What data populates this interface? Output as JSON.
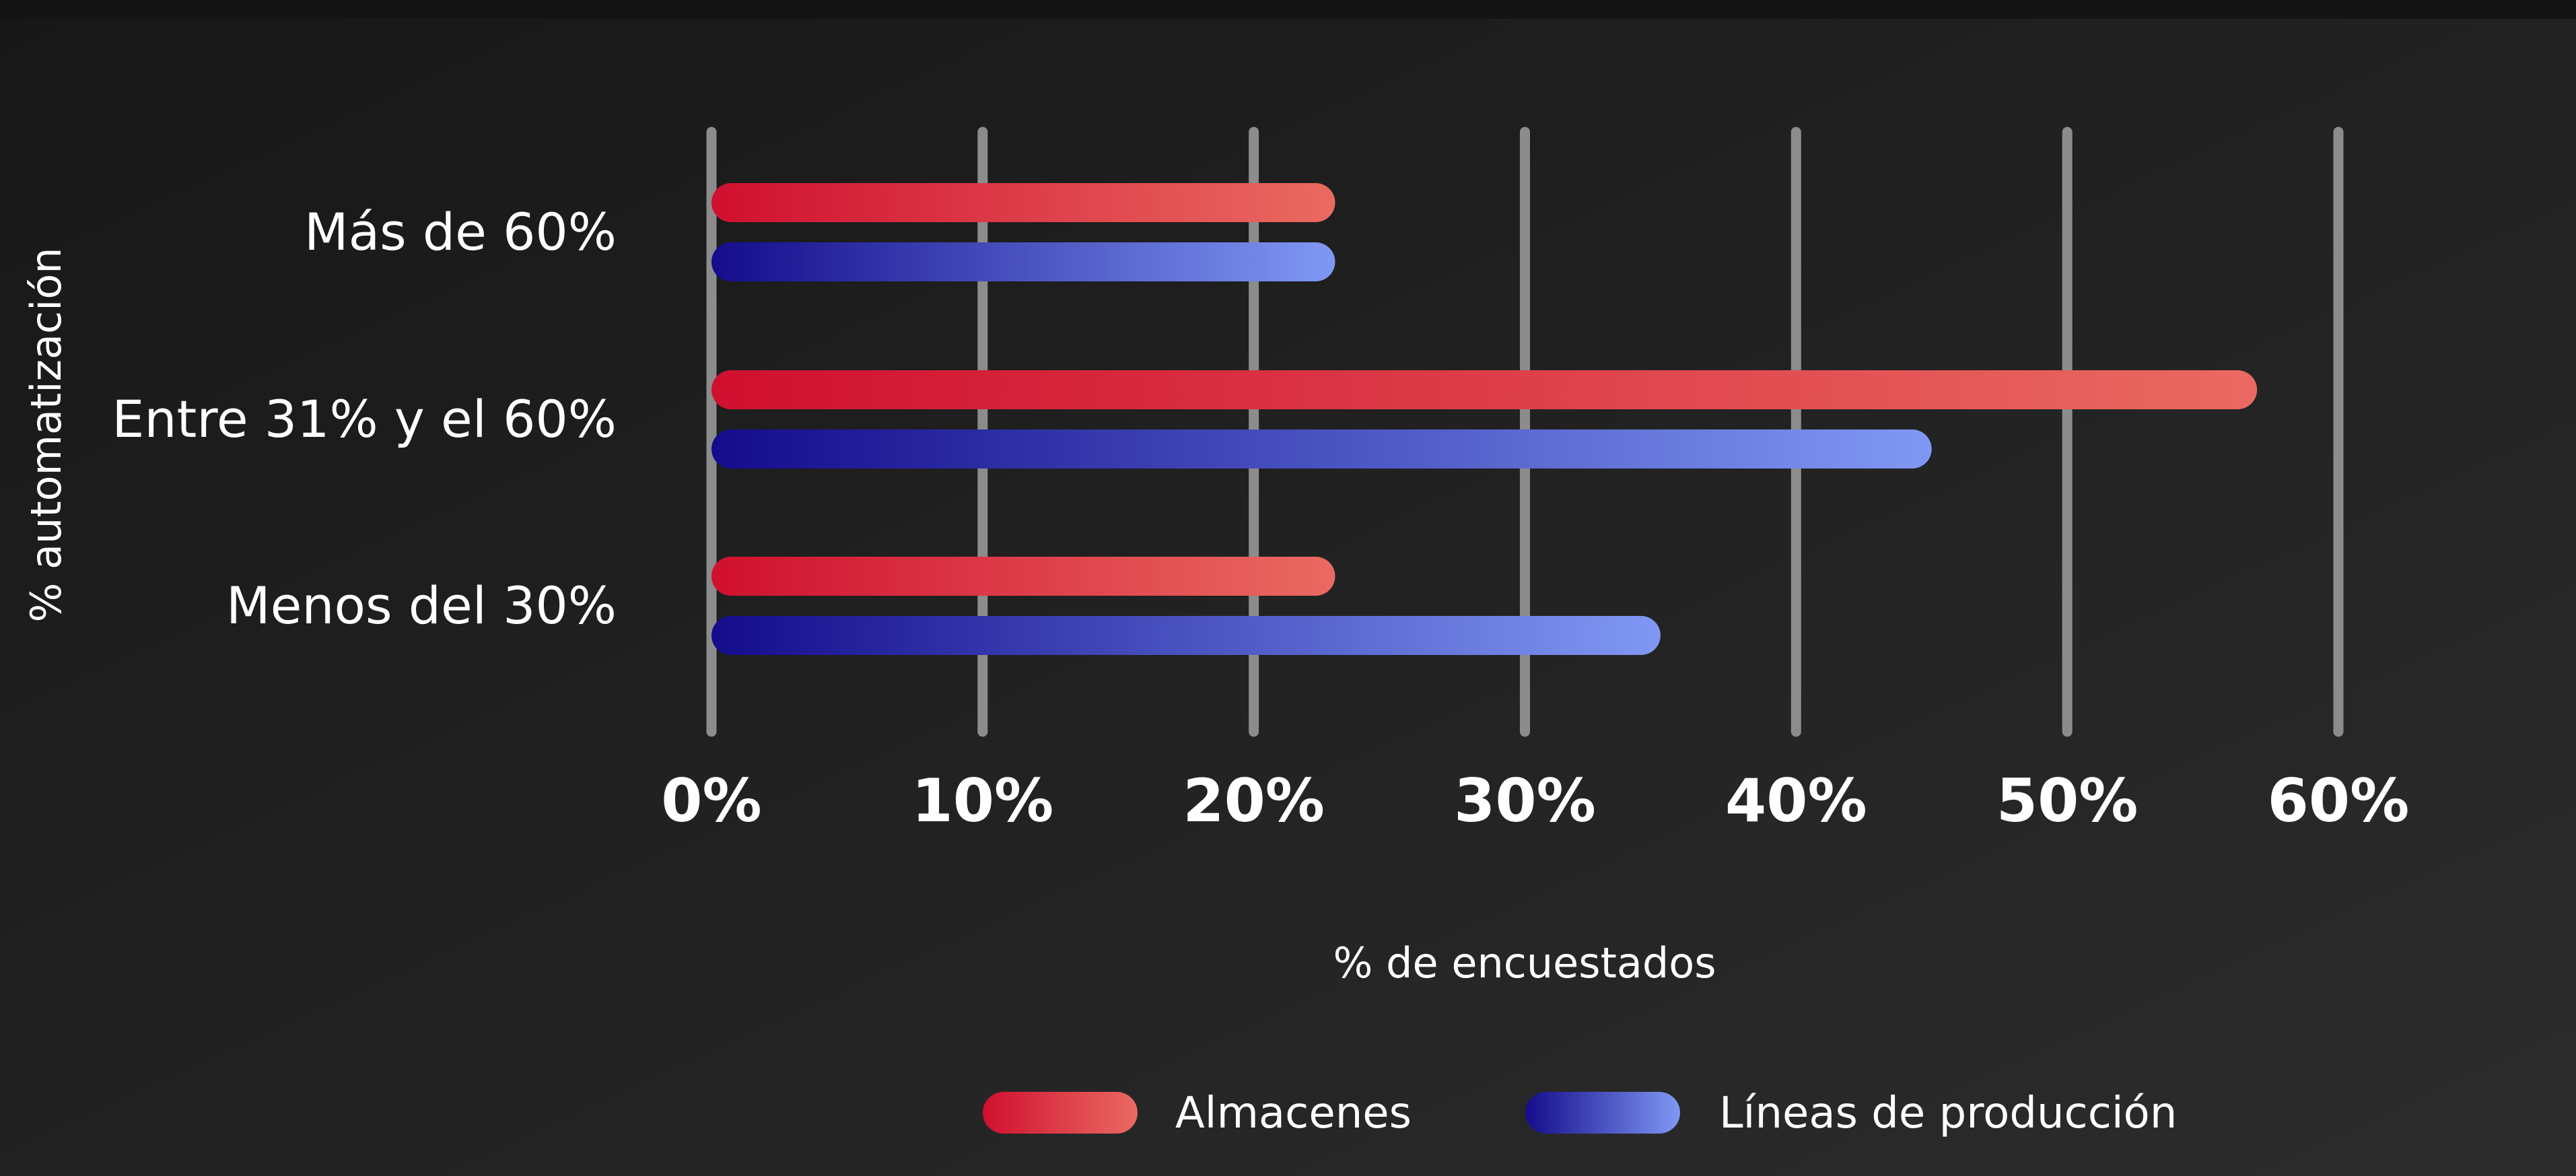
{
  "colors": {
    "background_start": "#171717",
    "background_end": "#2c2c2c",
    "top_band": "#141414",
    "grid": "#8c8c8c",
    "text": "#ffffff"
  },
  "chart_data": {
    "type": "bar",
    "orientation": "horizontal",
    "title": "",
    "xlabel": "% de encuestados",
    "ylabel": "% automatización",
    "categories": [
      "Más de 60%",
      "Entre 31% y el 60%",
      "Menos del 30%"
    ],
    "xlim": [
      0,
      60
    ],
    "x_ticks": [
      0,
      10,
      20,
      30,
      40,
      50,
      60
    ],
    "x_tick_labels": [
      "0%",
      "10%",
      "20%",
      "30%",
      "40%",
      "50%",
      "60%"
    ],
    "grid": "vertical",
    "legend_position": "bottom-center",
    "series": [
      {
        "name": "Almacenes",
        "values": [
          23,
          57,
          23
        ],
        "color_start": "#d0102f",
        "color_end": "#ea6a62"
      },
      {
        "name": "Líneas de producción",
        "values": [
          23,
          45,
          35
        ],
        "color_start": "#140c8c",
        "color_end": "#8098f4"
      }
    ]
  }
}
